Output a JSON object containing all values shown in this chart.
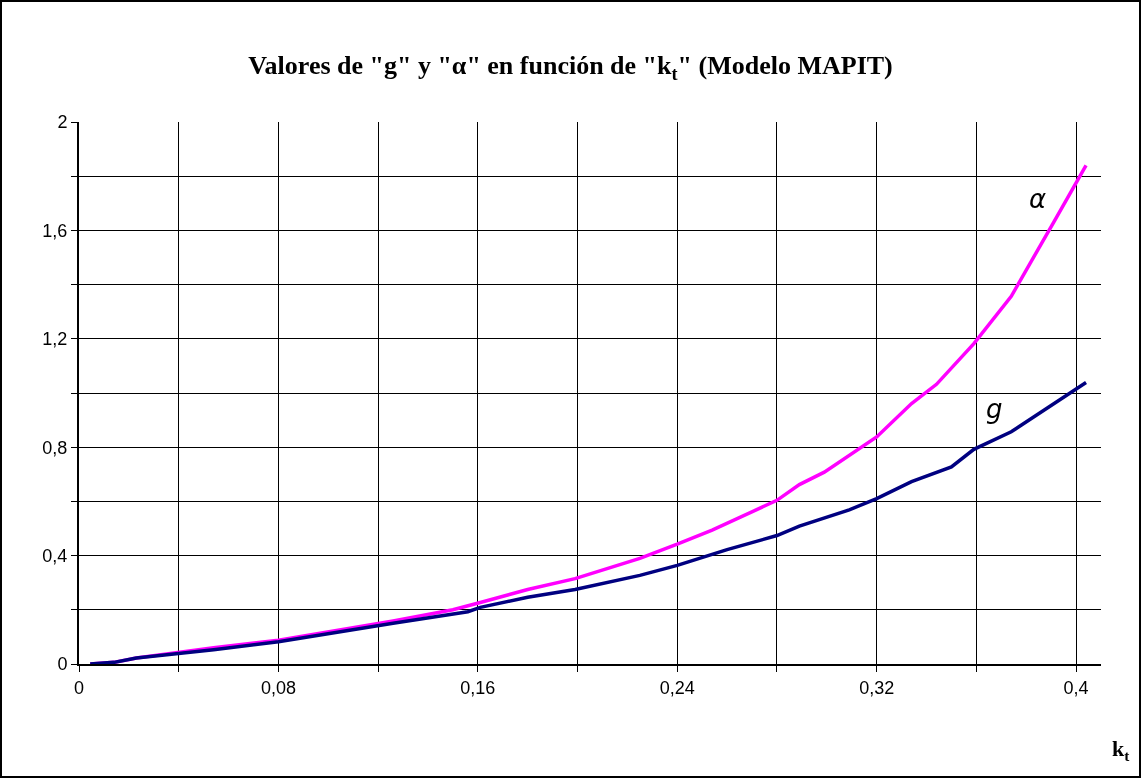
{
  "chart_data": {
    "type": "line",
    "title": "Valores de \"g\" y \"α\" en función de \"k$_{t}$\" (Modelo MAPIT)",
    "xlabel": "k$_{t}$",
    "xlim": [
      0,
      0.41
    ],
    "xticks": [
      {
        "value": 0,
        "label": "0"
      },
      {
        "value": 0.04,
        "label": null
      },
      {
        "value": 0.08,
        "label": "0,08"
      },
      {
        "value": 0.12,
        "label": null
      },
      {
        "value": 0.16,
        "label": "0,16"
      },
      {
        "value": 0.2,
        "label": null
      },
      {
        "value": 0.24,
        "label": "0,24"
      },
      {
        "value": 0.28,
        "label": null
      },
      {
        "value": 0.32,
        "label": "0,32"
      },
      {
        "value": 0.36,
        "label": null
      },
      {
        "value": 0.4,
        "label": "0,4"
      }
    ],
    "ylim": [
      0,
      2
    ],
    "yticks": [
      {
        "value": 0,
        "label": "0"
      },
      {
        "value": 0.2,
        "label": null
      },
      {
        "value": 0.4,
        "label": "0,4"
      },
      {
        "value": 0.6,
        "label": null
      },
      {
        "value": 0.8,
        "label": "0,8"
      },
      {
        "value": 1,
        "label": null
      },
      {
        "value": 1.2,
        "label": "1,2"
      },
      {
        "value": 1.4,
        "label": null
      },
      {
        "value": 1.6,
        "label": "1,6"
      },
      {
        "value": 1.8,
        "label": null
      },
      {
        "value": 2,
        "label": "2"
      }
    ],
    "grid": true,
    "legend": false,
    "marker": "none",
    "line_style": "solid",
    "series": [
      {
        "name": "α",
        "color": "#ff00ff",
        "x": [
          0.0045,
          0.014,
          0.023,
          0.054,
          0.08,
          0.126,
          0.15,
          0.161,
          0.18,
          0.199,
          0.225,
          0.24,
          0.254,
          0.28,
          0.289,
          0.299,
          0.32,
          0.334,
          0.344,
          0.359,
          0.374,
          0.391,
          0.404
        ],
        "values": [
          0,
          0.006,
          0.022,
          0.06,
          0.088,
          0.159,
          0.2,
          0.227,
          0.275,
          0.315,
          0.39,
          0.442,
          0.494,
          0.604,
          0.662,
          0.708,
          0.838,
          0.961,
          1.032,
          1.182,
          1.357,
          1.63,
          1.84
        ]
      },
      {
        "name": "g",
        "color": "#000080",
        "x": [
          0.0045,
          0.014,
          0.023,
          0.054,
          0.08,
          0.126,
          0.156,
          0.161,
          0.18,
          0.199,
          0.225,
          0.24,
          0.26,
          0.28,
          0.289,
          0.309,
          0.32,
          0.334,
          0.35,
          0.359,
          0.374,
          0.404
        ],
        "values": [
          0,
          0.006,
          0.022,
          0.053,
          0.082,
          0.15,
          0.193,
          0.209,
          0.246,
          0.275,
          0.327,
          0.364,
          0.422,
          0.474,
          0.509,
          0.569,
          0.61,
          0.673,
          0.727,
          0.792,
          0.857,
          1.039
        ]
      }
    ]
  }
}
